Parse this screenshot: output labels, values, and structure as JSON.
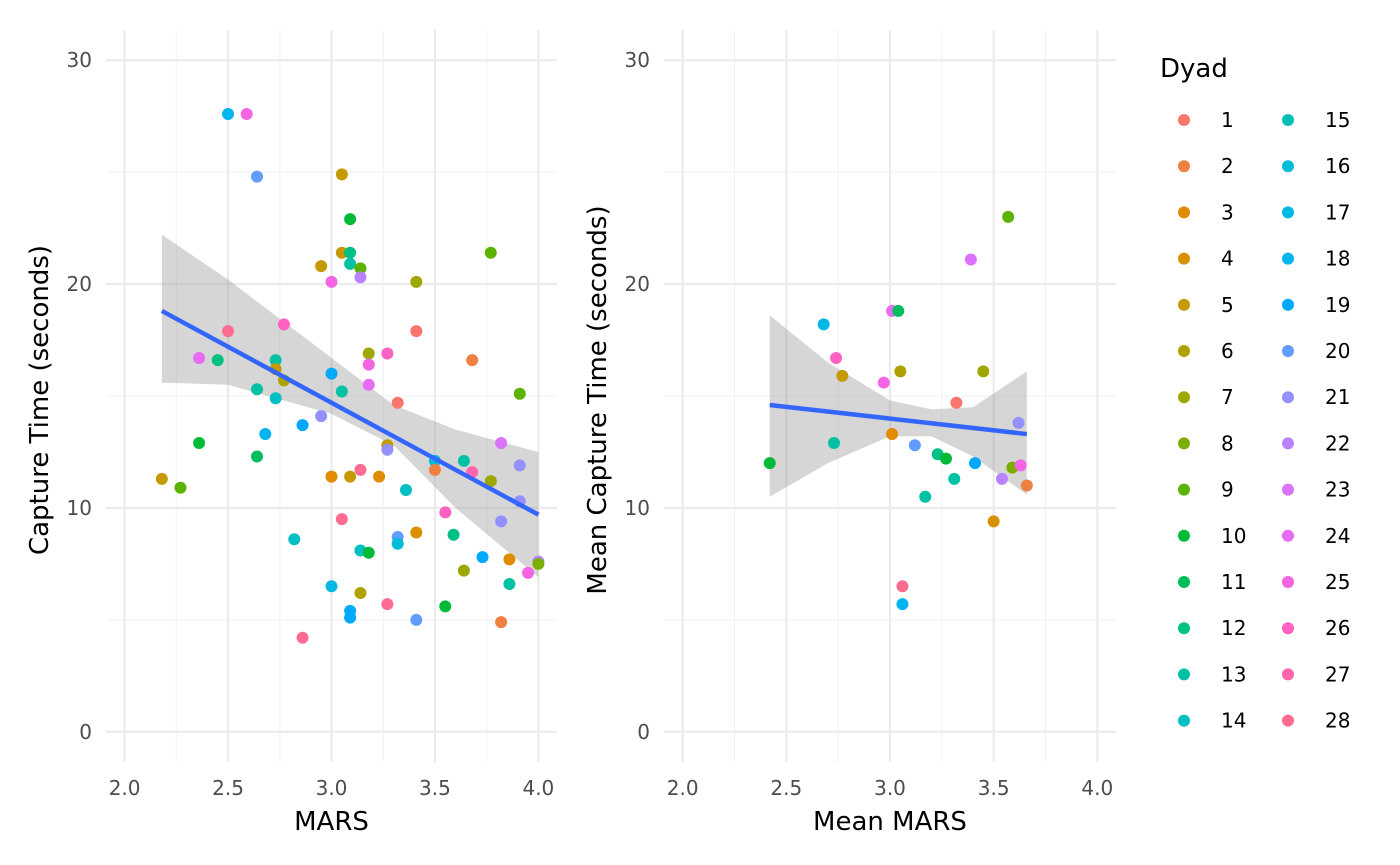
{
  "legend": {
    "title": "Dyad",
    "items": [
      {
        "label": "1",
        "color": "#F8766D"
      },
      {
        "label": "2",
        "color": "#EE8043"
      },
      {
        "label": "3",
        "color": "#E08B00"
      },
      {
        "label": "4",
        "color": "#D89000"
      },
      {
        "label": "5",
        "color": "#C49A00"
      },
      {
        "label": "6",
        "color": "#AFA100"
      },
      {
        "label": "7",
        "color": "#9DA700"
      },
      {
        "label": "8",
        "color": "#7CAE00"
      },
      {
        "label": "9",
        "color": "#5BB300"
      },
      {
        "label": "10",
        "color": "#00BA38"
      },
      {
        "label": "11",
        "color": "#00BD5C"
      },
      {
        "label": "12",
        "color": "#00C085"
      },
      {
        "label": "13",
        "color": "#00C1A3"
      },
      {
        "label": "14",
        "color": "#00BFC4"
      },
      {
        "label": "15",
        "color": "#00C0B8"
      },
      {
        "label": "16",
        "color": "#00BCD8"
      },
      {
        "label": "17",
        "color": "#00B9E3"
      },
      {
        "label": "18",
        "color": "#00B4F0"
      },
      {
        "label": "19",
        "color": "#00A9FF"
      },
      {
        "label": "20",
        "color": "#619CFF"
      },
      {
        "label": "21",
        "color": "#9590FF"
      },
      {
        "label": "22",
        "color": "#B983FF"
      },
      {
        "label": "23",
        "color": "#DB72FB"
      },
      {
        "label": "24",
        "color": "#E76BF3"
      },
      {
        "label": "25",
        "color": "#F564E3"
      },
      {
        "label": "26",
        "color": "#FF61C3"
      },
      {
        "label": "27",
        "color": "#FF65AC"
      },
      {
        "label": "28",
        "color": "#FF6C91"
      }
    ]
  },
  "chart_data": [
    {
      "type": "scatter",
      "xlabel": "MARS",
      "ylabel": "Capture Time (seconds)",
      "xlim": [
        2.0,
        4.0
      ],
      "ylim": [
        0,
        30
      ],
      "x_ticks": [
        "2.0",
        "2.5",
        "3.0",
        "3.5",
        "4.0"
      ],
      "y_ticks": [
        "0",
        "10",
        "20",
        "30"
      ],
      "grid": true,
      "fit": {
        "method": "linear",
        "x": [
          2.18,
          4.0
        ],
        "y": [
          18.8,
          9.7
        ],
        "band": {
          "x": [
            2.18,
            2.5,
            3.0,
            3.3,
            3.6,
            4.0
          ],
          "lower": [
            15.6,
            15.5,
            14.2,
            12.8,
            10.0,
            6.9
          ],
          "upper": [
            22.2,
            20.2,
            16.7,
            14.6,
            13.5,
            12.5
          ]
        }
      },
      "points": [
        {
          "x": 2.18,
          "y": 11.3,
          "c": "#C49A00"
        },
        {
          "x": 2.27,
          "y": 10.9,
          "c": "#5BB300"
        },
        {
          "x": 2.36,
          "y": 12.9,
          "c": "#00BA38"
        },
        {
          "x": 2.36,
          "y": 16.7,
          "c": "#E76BF3"
        },
        {
          "x": 2.45,
          "y": 16.6,
          "c": "#00C085"
        },
        {
          "x": 2.5,
          "y": 27.6,
          "c": "#00B4F0"
        },
        {
          "x": 2.5,
          "y": 17.9,
          "c": "#FF6C91"
        },
        {
          "x": 2.59,
          "y": 27.6,
          "c": "#F564E3"
        },
        {
          "x": 2.64,
          "y": 24.8,
          "c": "#619CFF"
        },
        {
          "x": 2.64,
          "y": 15.3,
          "c": "#00C1A3"
        },
        {
          "x": 2.64,
          "y": 12.3,
          "c": "#00BD5C"
        },
        {
          "x": 2.68,
          "y": 13.3,
          "c": "#00B4F0"
        },
        {
          "x": 2.73,
          "y": 16.6,
          "c": "#00C1A3"
        },
        {
          "x": 2.73,
          "y": 14.9,
          "c": "#00BFC4"
        },
        {
          "x": 2.73,
          "y": 16.2,
          "c": "#C49A00"
        },
        {
          "x": 2.77,
          "y": 15.7,
          "c": "#AFA100"
        },
        {
          "x": 2.77,
          "y": 18.2,
          "c": "#FF61C3"
        },
        {
          "x": 2.82,
          "y": 8.6,
          "c": "#00BFC4"
        },
        {
          "x": 2.86,
          "y": 13.7,
          "c": "#00A9FF"
        },
        {
          "x": 2.86,
          "y": 4.2,
          "c": "#FF6C91"
        },
        {
          "x": 2.95,
          "y": 20.8,
          "c": "#C49A00"
        },
        {
          "x": 2.95,
          "y": 14.1,
          "c": "#9590FF"
        },
        {
          "x": 3.0,
          "y": 20.1,
          "c": "#F564E3"
        },
        {
          "x": 3.0,
          "y": 16.0,
          "c": "#00A9FF"
        },
        {
          "x": 3.0,
          "y": 11.4,
          "c": "#E08B00"
        },
        {
          "x": 3.0,
          "y": 6.5,
          "c": "#00B9E3"
        },
        {
          "x": 3.05,
          "y": 24.9,
          "c": "#C49A00"
        },
        {
          "x": 3.05,
          "y": 21.4,
          "c": "#C49A00"
        },
        {
          "x": 3.05,
          "y": 15.2,
          "c": "#00C1A3"
        },
        {
          "x": 3.05,
          "y": 9.5,
          "c": "#FF6C91"
        },
        {
          "x": 3.09,
          "y": 22.9,
          "c": "#00BA38"
        },
        {
          "x": 3.09,
          "y": 21.4,
          "c": "#00C085"
        },
        {
          "x": 3.09,
          "y": 20.9,
          "c": "#00C1A3"
        },
        {
          "x": 3.09,
          "y": 11.4,
          "c": "#C49A00"
        },
        {
          "x": 3.09,
          "y": 5.4,
          "c": "#00A9FF"
        },
        {
          "x": 3.09,
          "y": 5.1,
          "c": "#00A9FF"
        },
        {
          "x": 3.14,
          "y": 20.7,
          "c": "#5BB300"
        },
        {
          "x": 3.14,
          "y": 20.3,
          "c": "#B983FF"
        },
        {
          "x": 3.14,
          "y": 11.7,
          "c": "#FF6C91"
        },
        {
          "x": 3.14,
          "y": 8.1,
          "c": "#00BFC4"
        },
        {
          "x": 3.14,
          "y": 6.2,
          "c": "#AFA100"
        },
        {
          "x": 3.18,
          "y": 16.9,
          "c": "#9DA700"
        },
        {
          "x": 3.18,
          "y": 16.4,
          "c": "#F564E3"
        },
        {
          "x": 3.18,
          "y": 15.5,
          "c": "#E76BF3"
        },
        {
          "x": 3.18,
          "y": 8.0,
          "c": "#00BA38"
        },
        {
          "x": 3.23,
          "y": 11.4,
          "c": "#E08B00"
        },
        {
          "x": 3.27,
          "y": 16.9,
          "c": "#FF61C3"
        },
        {
          "x": 3.27,
          "y": 12.8,
          "c": "#C49A00"
        },
        {
          "x": 3.27,
          "y": 12.6,
          "c": "#9590FF"
        },
        {
          "x": 3.27,
          "y": 5.7,
          "c": "#FF6C91"
        },
        {
          "x": 3.32,
          "y": 14.7,
          "c": "#F8766D"
        },
        {
          "x": 3.32,
          "y": 8.7,
          "c": "#619CFF"
        },
        {
          "x": 3.32,
          "y": 8.4,
          "c": "#00BCD8"
        },
        {
          "x": 3.36,
          "y": 10.8,
          "c": "#00BFC4"
        },
        {
          "x": 3.41,
          "y": 20.1,
          "c": "#9DA700"
        },
        {
          "x": 3.41,
          "y": 17.9,
          "c": "#F8766D"
        },
        {
          "x": 3.41,
          "y": 8.9,
          "c": "#D89000"
        },
        {
          "x": 3.41,
          "y": 5.0,
          "c": "#619CFF"
        },
        {
          "x": 3.5,
          "y": 12.1,
          "c": "#00BCD8"
        },
        {
          "x": 3.5,
          "y": 11.7,
          "c": "#EE8043"
        },
        {
          "x": 3.55,
          "y": 9.8,
          "c": "#FF61C3"
        },
        {
          "x": 3.55,
          "y": 5.6,
          "c": "#00BA38"
        },
        {
          "x": 3.59,
          "y": 8.8,
          "c": "#00C085"
        },
        {
          "x": 3.64,
          "y": 12.1,
          "c": "#00C1A3"
        },
        {
          "x": 3.64,
          "y": 7.2,
          "c": "#9DA700"
        },
        {
          "x": 3.68,
          "y": 16.6,
          "c": "#EE8043"
        },
        {
          "x": 3.68,
          "y": 11.6,
          "c": "#FF65AC"
        },
        {
          "x": 3.73,
          "y": 7.8,
          "c": "#00A9FF"
        },
        {
          "x": 3.77,
          "y": 21.4,
          "c": "#5BB300"
        },
        {
          "x": 3.77,
          "y": 11.2,
          "c": "#9DA700"
        },
        {
          "x": 3.82,
          "y": 12.9,
          "c": "#DB72FB"
        },
        {
          "x": 3.82,
          "y": 9.4,
          "c": "#9590FF"
        },
        {
          "x": 3.82,
          "y": 4.9,
          "c": "#EE8043"
        },
        {
          "x": 3.86,
          "y": 7.7,
          "c": "#E08B00"
        },
        {
          "x": 3.86,
          "y": 6.6,
          "c": "#00C1A3"
        },
        {
          "x": 3.91,
          "y": 15.1,
          "c": "#5BB300"
        },
        {
          "x": 3.91,
          "y": 11.9,
          "c": "#9590FF"
        },
        {
          "x": 3.91,
          "y": 10.3,
          "c": "#9590FF"
        },
        {
          "x": 3.95,
          "y": 7.1,
          "c": "#F564E3"
        },
        {
          "x": 4.0,
          "y": 7.6,
          "c": "#B983FF"
        },
        {
          "x": 4.0,
          "y": 7.5,
          "c": "#7CAE00"
        }
      ]
    },
    {
      "type": "scatter",
      "xlabel": "Mean MARS",
      "ylabel": "Mean Capture Time (seconds)",
      "xlim": [
        2.0,
        4.0
      ],
      "ylim": [
        0,
        30
      ],
      "x_ticks": [
        "2.0",
        "2.5",
        "3.0",
        "3.5",
        "4.0"
      ],
      "y_ticks": [
        "0",
        "10",
        "20",
        "30"
      ],
      "grid": true,
      "fit": {
        "method": "linear",
        "x": [
          2.42,
          3.66
        ],
        "y": [
          14.6,
          13.3
        ],
        "band": {
          "x": [
            2.42,
            2.7,
            3.0,
            3.2,
            3.4,
            3.66
          ],
          "lower": [
            10.5,
            12.0,
            13.2,
            13.2,
            12.3,
            10.6
          ],
          "upper": [
            18.6,
            16.5,
            14.8,
            14.4,
            14.5,
            16.1
          ]
        }
      },
      "points": [
        {
          "x": 2.42,
          "y": 12.0,
          "c": "#00BA38"
        },
        {
          "x": 2.68,
          "y": 18.2,
          "c": "#00B9E3"
        },
        {
          "x": 2.73,
          "y": 12.9,
          "c": "#00C1A3"
        },
        {
          "x": 2.74,
          "y": 16.7,
          "c": "#FF61C3"
        },
        {
          "x": 2.77,
          "y": 15.9,
          "c": "#C49A00"
        },
        {
          "x": 2.97,
          "y": 15.6,
          "c": "#F564E3"
        },
        {
          "x": 3.01,
          "y": 18.8,
          "c": "#E76BF3"
        },
        {
          "x": 3.01,
          "y": 13.3,
          "c": "#E08B00"
        },
        {
          "x": 3.04,
          "y": 18.8,
          "c": "#00BD5C"
        },
        {
          "x": 3.05,
          "y": 16.1,
          "c": "#AFA100"
        },
        {
          "x": 3.06,
          "y": 6.5,
          "c": "#FF6C91"
        },
        {
          "x": 3.06,
          "y": 5.7,
          "c": "#00B4F0"
        },
        {
          "x": 3.12,
          "y": 12.8,
          "c": "#619CFF"
        },
        {
          "x": 3.17,
          "y": 10.5,
          "c": "#00C1A3"
        },
        {
          "x": 3.23,
          "y": 12.4,
          "c": "#00C085"
        },
        {
          "x": 3.27,
          "y": 12.2,
          "c": "#00BA38"
        },
        {
          "x": 3.31,
          "y": 11.3,
          "c": "#00C1A3"
        },
        {
          "x": 3.32,
          "y": 14.7,
          "c": "#F8766D"
        },
        {
          "x": 3.39,
          "y": 21.1,
          "c": "#DB72FB"
        },
        {
          "x": 3.41,
          "y": 12.0,
          "c": "#00A9FF"
        },
        {
          "x": 3.45,
          "y": 16.1,
          "c": "#9DA700"
        },
        {
          "x": 3.5,
          "y": 9.4,
          "c": "#D89000"
        },
        {
          "x": 3.54,
          "y": 11.3,
          "c": "#B983FF"
        },
        {
          "x": 3.57,
          "y": 23.0,
          "c": "#5BB300"
        },
        {
          "x": 3.59,
          "y": 11.8,
          "c": "#7CAE00"
        },
        {
          "x": 3.62,
          "y": 13.8,
          "c": "#9590FF"
        },
        {
          "x": 3.63,
          "y": 11.9,
          "c": "#F564E3"
        },
        {
          "x": 3.66,
          "y": 11.0,
          "c": "#EE8043"
        }
      ]
    }
  ]
}
